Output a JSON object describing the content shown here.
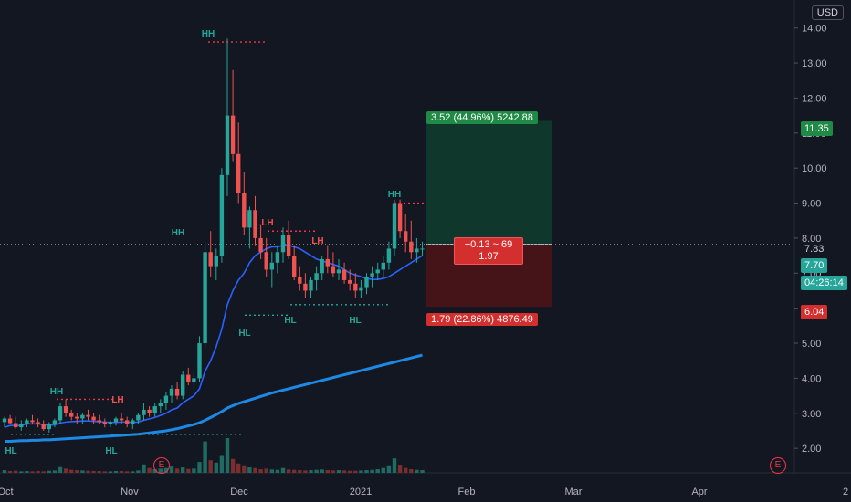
{
  "currency": "USD",
  "price_axis": {
    "ticks": [
      "14.00",
      "13.00",
      "12.00",
      "11.00",
      "10.00",
      "9.00",
      "8.00",
      "7.00",
      "6.00",
      "5.00",
      "4.00",
      "3.00",
      "2.00"
    ],
    "tags": {
      "target": "11.35",
      "last_dotted": "7.83",
      "current": "7.70",
      "countdown": "04:26:14",
      "stop": "6.04"
    }
  },
  "time_axis": {
    "labels": [
      "Oct",
      "Nov",
      "Dec",
      "2021",
      "Feb",
      "Mar",
      "Apr",
      "2"
    ]
  },
  "position_tool": {
    "profit_label": "3.52 (44.96%) 5242.88",
    "loss_label": "1.79 (22.86%) 4876.49",
    "mid_line1": "−0.13 ~ 69",
    "mid_line2": "1.97"
  },
  "markers": {
    "hh": "HH",
    "lh": "LH",
    "hl": "HL"
  },
  "earnings_badge": "E",
  "colors": {
    "background": "#131722",
    "up": "#26a69a",
    "down": "#ef5350",
    "ma_fast": "#2962ff",
    "ma_slow": "#1e88e5",
    "profit_zone": "#0f3b2e",
    "loss_zone": "#4a1418"
  },
  "chart_data": {
    "type": "candlestick",
    "y_range": [
      1.3,
      14.8
    ],
    "candles": [
      [
        2.75,
        2.9,
        2.6,
        2.85
      ],
      [
        2.85,
        2.95,
        2.7,
        2.72
      ],
      [
        2.72,
        2.9,
        2.55,
        2.6
      ],
      [
        2.6,
        2.8,
        2.5,
        2.7
      ],
      [
        2.7,
        2.85,
        2.6,
        2.8
      ],
      [
        2.8,
        2.95,
        2.7,
        2.75
      ],
      [
        2.75,
        2.85,
        2.6,
        2.7
      ],
      [
        2.7,
        2.8,
        2.5,
        2.55
      ],
      [
        2.55,
        2.75,
        2.45,
        2.7
      ],
      [
        2.7,
        2.85,
        2.6,
        2.8
      ],
      [
        2.8,
        3.3,
        2.7,
        3.2
      ],
      [
        3.2,
        3.4,
        2.9,
        3.0
      ],
      [
        3.0,
        3.1,
        2.8,
        2.9
      ],
      [
        2.9,
        3.0,
        2.7,
        2.85
      ],
      [
        2.85,
        3.0,
        2.7,
        2.95
      ],
      [
        2.95,
        3.1,
        2.8,
        2.9
      ],
      [
        2.9,
        3.0,
        2.7,
        2.8
      ],
      [
        2.8,
        2.95,
        2.7,
        2.75
      ],
      [
        2.75,
        2.85,
        2.6,
        2.7
      ],
      [
        2.7,
        2.8,
        2.6,
        2.75
      ],
      [
        2.75,
        2.9,
        2.65,
        2.85
      ],
      [
        2.85,
        3.0,
        2.7,
        2.8
      ],
      [
        2.8,
        2.9,
        2.6,
        2.7
      ],
      [
        2.7,
        2.85,
        2.55,
        2.8
      ],
      [
        2.8,
        3.0,
        2.7,
        2.95
      ],
      [
        2.95,
        3.3,
        2.8,
        3.1
      ],
      [
        3.1,
        3.2,
        2.9,
        3.0
      ],
      [
        3.0,
        3.3,
        2.9,
        3.2
      ],
      [
        3.2,
        3.4,
        3.0,
        3.3
      ],
      [
        3.3,
        3.6,
        3.1,
        3.5
      ],
      [
        3.5,
        3.8,
        3.3,
        3.7
      ],
      [
        3.7,
        3.9,
        3.4,
        3.5
      ],
      [
        3.5,
        4.2,
        3.4,
        4.1
      ],
      [
        4.1,
        4.3,
        3.8,
        3.9
      ],
      [
        3.9,
        4.2,
        3.7,
        4.0
      ],
      [
        4.0,
        5.2,
        3.9,
        5.0
      ],
      [
        5.0,
        7.9,
        4.9,
        7.6
      ],
      [
        7.6,
        8.2,
        6.9,
        7.2
      ],
      [
        7.2,
        7.7,
        6.8,
        7.5
      ],
      [
        7.5,
        10.0,
        7.3,
        9.8
      ],
      [
        9.8,
        13.7,
        9.2,
        11.5
      ],
      [
        11.5,
        12.8,
        10.2,
        10.4
      ],
      [
        10.4,
        11.3,
        9.0,
        9.3
      ],
      [
        9.3,
        9.9,
        8.1,
        8.3
      ],
      [
        8.3,
        8.9,
        7.7,
        8.8
      ],
      [
        8.8,
        9.2,
        7.8,
        8.0
      ],
      [
        8.0,
        8.4,
        7.4,
        7.6
      ],
      [
        7.6,
        8.0,
        6.9,
        7.1
      ],
      [
        7.1,
        7.6,
        6.6,
        7.3
      ],
      [
        7.3,
        7.8,
        7.0,
        7.6
      ],
      [
        7.6,
        8.3,
        7.3,
        8.1
      ],
      [
        8.1,
        8.5,
        7.4,
        7.5
      ],
      [
        7.5,
        7.8,
        6.8,
        6.9
      ],
      [
        6.9,
        7.2,
        6.5,
        6.7
      ],
      [
        6.7,
        7.0,
        6.3,
        6.5
      ],
      [
        6.5,
        6.9,
        6.3,
        6.8
      ],
      [
        6.8,
        7.2,
        6.5,
        7.0
      ],
      [
        7.0,
        7.5,
        6.8,
        7.4
      ],
      [
        7.4,
        7.8,
        7.0,
        7.2
      ],
      [
        7.2,
        7.6,
        6.9,
        7.0
      ],
      [
        7.0,
        7.4,
        6.8,
        7.1
      ],
      [
        7.1,
        7.3,
        6.7,
        6.8
      ],
      [
        6.8,
        7.1,
        6.5,
        6.7
      ],
      [
        6.7,
        7.0,
        6.3,
        6.5
      ],
      [
        6.5,
        6.8,
        6.3,
        6.6
      ],
      [
        6.6,
        7.0,
        6.4,
        6.9
      ],
      [
        6.9,
        7.2,
        6.6,
        7.0
      ],
      [
        7.0,
        7.3,
        6.8,
        7.1
      ],
      [
        7.1,
        7.5,
        6.9,
        7.3
      ],
      [
        7.3,
        7.9,
        7.1,
        7.7
      ],
      [
        7.7,
        9.1,
        7.5,
        9.0
      ],
      [
        9.0,
        9.1,
        8.0,
        8.2
      ],
      [
        8.2,
        8.7,
        7.6,
        7.9
      ],
      [
        7.9,
        8.5,
        7.4,
        7.6
      ],
      [
        7.6,
        8.0,
        7.3,
        7.7
      ],
      [
        7.7,
        7.9,
        7.5,
        7.7
      ]
    ],
    "volume": [
      0.9,
      0.6,
      0.7,
      0.5,
      0.6,
      0.5,
      0.6,
      0.5,
      0.7,
      0.8,
      1.9,
      1.4,
      1.0,
      0.9,
      0.8,
      0.7,
      0.6,
      0.6,
      0.5,
      0.5,
      0.6,
      0.6,
      0.5,
      0.5,
      0.8,
      2.8,
      1.6,
      1.2,
      1.4,
      1.6,
      2.1,
      1.4,
      1.8,
      1.3,
      1.4,
      3.6,
      10.4,
      4.2,
      3.4,
      5.6,
      11.5,
      4.6,
      3.1,
      2.2,
      1.8,
      1.6,
      1.2,
      1.4,
      1.1,
      1.0,
      1.6,
      1.1,
      1.0,
      0.9,
      0.8,
      0.9,
      1.0,
      1.1,
      0.9,
      0.8,
      0.9,
      0.8,
      0.7,
      0.7,
      0.8,
      0.9,
      1.0,
      1.2,
      1.6,
      2.2,
      4.8,
      2.4,
      1.6,
      1.2,
      1.0,
      0.9
    ],
    "ma_fast": [
      2.6,
      2.65,
      2.65,
      2.65,
      2.7,
      2.7,
      2.7,
      2.68,
      2.66,
      2.67,
      2.72,
      2.75,
      2.76,
      2.77,
      2.78,
      2.78,
      2.77,
      2.76,
      2.75,
      2.74,
      2.74,
      2.75,
      2.75,
      2.74,
      2.75,
      2.8,
      2.84,
      2.88,
      2.94,
      3.0,
      3.1,
      3.15,
      3.3,
      3.4,
      3.5,
      3.7,
      4.2,
      4.5,
      4.9,
      5.4,
      6.1,
      6.5,
      6.8,
      7.0,
      7.3,
      7.5,
      7.6,
      7.7,
      7.75,
      7.75,
      7.8,
      7.8,
      7.75,
      7.7,
      7.6,
      7.5,
      7.4,
      7.35,
      7.3,
      7.25,
      7.2,
      7.1,
      7.0,
      6.95,
      6.9,
      6.85,
      6.82,
      6.82,
      6.85,
      6.9,
      7.0,
      7.1,
      7.2,
      7.3,
      7.4,
      7.5
    ],
    "ma_slow": [
      2.2,
      2.2,
      2.21,
      2.22,
      2.22,
      2.23,
      2.23,
      2.24,
      2.24,
      2.25,
      2.26,
      2.27,
      2.28,
      2.29,
      2.3,
      2.31,
      2.32,
      2.33,
      2.34,
      2.35,
      2.36,
      2.37,
      2.38,
      2.39,
      2.4,
      2.42,
      2.44,
      2.46,
      2.48,
      2.5,
      2.53,
      2.56,
      2.6,
      2.64,
      2.68,
      2.73,
      2.8,
      2.88,
      2.96,
      3.05,
      3.15,
      3.22,
      3.28,
      3.33,
      3.38,
      3.43,
      3.48,
      3.53,
      3.58,
      3.62,
      3.66,
      3.7,
      3.74,
      3.78,
      3.82,
      3.86,
      3.9,
      3.94,
      3.98,
      4.02,
      4.06,
      4.1,
      4.14,
      4.18,
      4.22,
      4.26,
      4.3,
      4.34,
      4.38,
      4.42,
      4.46,
      4.5,
      4.54,
      4.58,
      4.62,
      4.66
    ],
    "position": {
      "entry": 7.83,
      "target": 11.35,
      "stop": 6.04
    }
  }
}
